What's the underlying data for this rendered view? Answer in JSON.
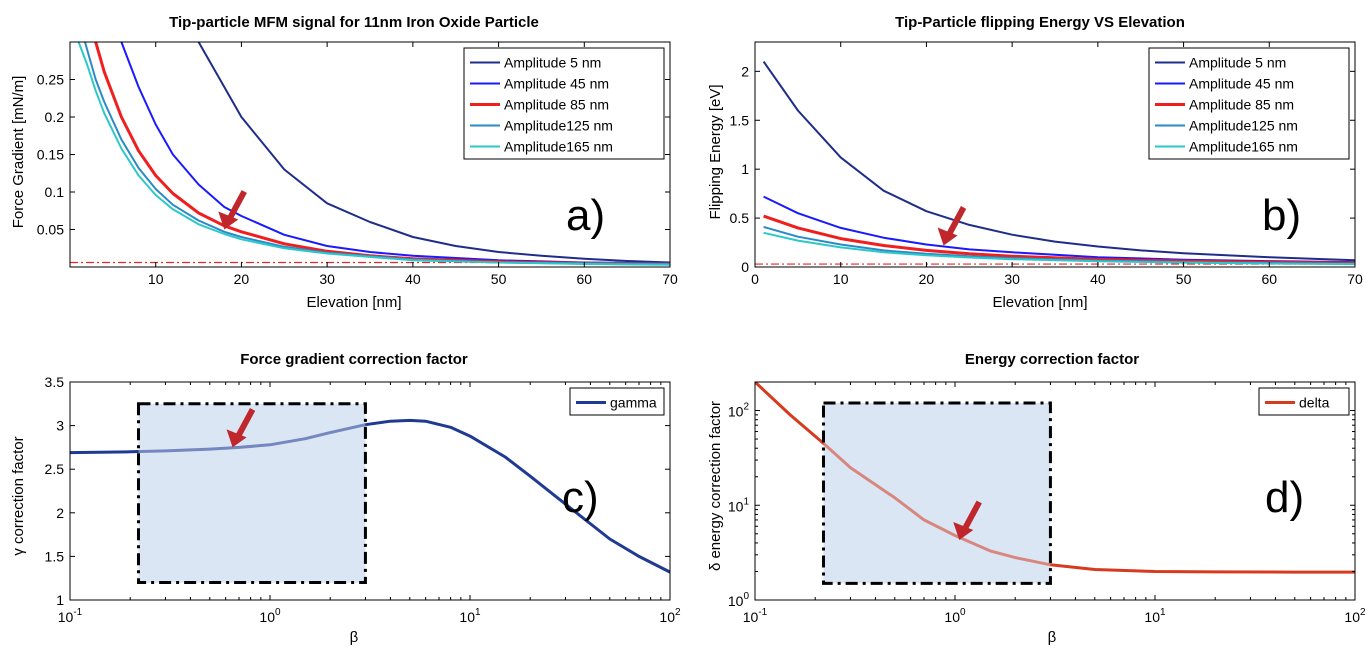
{
  "chart_data": [
    {
      "id": "a",
      "type": "line",
      "title": "Tip-particle MFM signal for 11nm Iron Oxide Particle",
      "xlabel": "Elevation [nm]",
      "ylabel": "Force Gradient [mN/m]",
      "xlim": [
        0,
        70
      ],
      "ylim": [
        0,
        0.3
      ],
      "x_scale": "linear",
      "y_scale": "linear",
      "xticks": [
        10,
        20,
        30,
        40,
        50,
        60,
        70
      ],
      "yticks": [
        0.05,
        0.1,
        0.15,
        0.2,
        0.25
      ],
      "panel_label": "a)",
      "legend_position": "top-right",
      "threshold": {
        "y": 0.006,
        "color": "#e8262b",
        "style": "dash-dot"
      },
      "annotation_arrow": {
        "x": 18,
        "y": 0.05,
        "color": "#c0272d"
      },
      "series": [
        {
          "name": "Amplitude  5 nm",
          "color": "#1f2d8a",
          "width": 2,
          "x": [
            10,
            15,
            18,
            20,
            25,
            30,
            35,
            40,
            45,
            50,
            55,
            60,
            65,
            70
          ],
          "y": [
            0.34,
            0.3,
            0.24,
            0.2,
            0.13,
            0.085,
            0.06,
            0.04,
            0.028,
            0.02,
            0.015,
            0.011,
            0.008,
            0.006
          ]
        },
        {
          "name": "Amplitude 45 nm",
          "color": "#1a1aff",
          "width": 2,
          "x": [
            3,
            5,
            6,
            8,
            10,
            12,
            15,
            18,
            20,
            25,
            30,
            35,
            40,
            50,
            60,
            70
          ],
          "y": [
            0.35,
            0.31,
            0.3,
            0.24,
            0.19,
            0.15,
            0.11,
            0.08,
            0.068,
            0.043,
            0.028,
            0.02,
            0.015,
            0.009,
            0.006,
            0.005
          ]
        },
        {
          "name": "Amplitude 85 nm",
          "color": "#f01e1e",
          "width": 3,
          "x": [
            2,
            3,
            4,
            6,
            8,
            10,
            12,
            15,
            18,
            20,
            25,
            30,
            35,
            40,
            50,
            60,
            70
          ],
          "y": [
            0.34,
            0.3,
            0.26,
            0.2,
            0.155,
            0.122,
            0.098,
            0.072,
            0.055,
            0.047,
            0.031,
            0.021,
            0.015,
            0.011,
            0.007,
            0.005,
            0.004
          ]
        },
        {
          "name": "Amplitude125 nm",
          "color": "#2a8ac8",
          "width": 2,
          "x": [
            1.5,
            2,
            3,
            4,
            6,
            8,
            10,
            12,
            15,
            18,
            20,
            25,
            30,
            40,
            50,
            60,
            70
          ],
          "y": [
            0.31,
            0.29,
            0.25,
            0.22,
            0.17,
            0.132,
            0.104,
            0.083,
            0.062,
            0.047,
            0.04,
            0.027,
            0.019,
            0.01,
            0.006,
            0.005,
            0.004
          ]
        },
        {
          "name": "Amplitude165 nm",
          "color": "#2ec7c9",
          "width": 2,
          "x": [
            1,
            2,
            3,
            4,
            6,
            8,
            10,
            12,
            15,
            18,
            20,
            25,
            30,
            40,
            50,
            60,
            70
          ],
          "y": [
            0.3,
            0.27,
            0.235,
            0.205,
            0.158,
            0.122,
            0.096,
            0.077,
            0.057,
            0.044,
            0.037,
            0.025,
            0.018,
            0.009,
            0.006,
            0.004,
            0.003
          ]
        }
      ]
    },
    {
      "id": "b",
      "type": "line",
      "title": "Tip-Particle flipping Energy VS Elevation",
      "xlabel": "Elevation [nm]",
      "ylabel": "Flipping Energy [eV]",
      "xlim": [
        0,
        70
      ],
      "ylim": [
        0,
        2.3
      ],
      "x_scale": "linear",
      "y_scale": "linear",
      "xticks": [
        0,
        10,
        20,
        30,
        40,
        50,
        60,
        70
      ],
      "yticks": [
        0,
        0.5,
        1,
        1.5,
        2
      ],
      "panel_label": "b)",
      "legend_position": "top-right",
      "threshold": {
        "y": 0.03,
        "color": "#e8262b",
        "style": "dash-dot"
      },
      "annotation_arrow": {
        "x": 22,
        "y": 0.22,
        "color": "#c0272d"
      },
      "series": [
        {
          "name": "Amplitude  5 nm",
          "color": "#1f2d8a",
          "width": 2,
          "x": [
            1,
            5,
            10,
            15,
            20,
            25,
            30,
            35,
            40,
            45,
            50,
            55,
            60,
            65,
            70
          ],
          "y": [
            2.1,
            1.6,
            1.12,
            0.78,
            0.57,
            0.43,
            0.33,
            0.26,
            0.21,
            0.17,
            0.14,
            0.12,
            0.1,
            0.085,
            0.07
          ]
        },
        {
          "name": "Amplitude 45 nm",
          "color": "#1a1aff",
          "width": 2,
          "x": [
            1,
            5,
            10,
            15,
            20,
            25,
            30,
            40,
            50,
            60,
            70
          ],
          "y": [
            0.72,
            0.55,
            0.4,
            0.3,
            0.23,
            0.18,
            0.15,
            0.1,
            0.075,
            0.06,
            0.05
          ]
        },
        {
          "name": "Amplitude 85 nm",
          "color": "#f01e1e",
          "width": 3,
          "x": [
            1,
            5,
            10,
            15,
            20,
            25,
            30,
            40,
            50,
            60,
            70
          ],
          "y": [
            0.52,
            0.4,
            0.29,
            0.22,
            0.17,
            0.135,
            0.11,
            0.078,
            0.06,
            0.048,
            0.04
          ]
        },
        {
          "name": "Amplitude125 nm",
          "color": "#2a8ac8",
          "width": 2,
          "x": [
            1,
            5,
            10,
            15,
            20,
            25,
            30,
            40,
            50,
            60,
            70
          ],
          "y": [
            0.41,
            0.31,
            0.23,
            0.17,
            0.135,
            0.11,
            0.09,
            0.065,
            0.05,
            0.04,
            0.033
          ]
        },
        {
          "name": "Amplitude165 nm",
          "color": "#2ec7c9",
          "width": 2,
          "x": [
            1,
            5,
            10,
            15,
            20,
            25,
            30,
            40,
            50,
            60,
            70
          ],
          "y": [
            0.35,
            0.27,
            0.2,
            0.15,
            0.12,
            0.097,
            0.08,
            0.058,
            0.045,
            0.036,
            0.03
          ]
        }
      ]
    },
    {
      "id": "c",
      "type": "line",
      "title": "Force gradient correction factor",
      "xlabel": "β",
      "ylabel": "γ correction factor",
      "xlim": [
        0.1,
        100
      ],
      "ylim": [
        1,
        3.5
      ],
      "x_scale": "log",
      "y_scale": "linear",
      "xticks": [
        0.1,
        1,
        10,
        100
      ],
      "xtick_labels": [
        {
          "base": "10",
          "exp": "-1"
        },
        {
          "base": "10",
          "exp": "0"
        },
        {
          "base": "10",
          "exp": "1"
        },
        {
          "base": "10",
          "exp": "2"
        }
      ],
      "yticks": [
        1,
        1.5,
        2,
        2.5,
        3,
        3.5
      ],
      "panel_label": "c)",
      "legend_position": "top-right",
      "highlight_box": {
        "x": [
          0.22,
          3.0
        ],
        "y": [
          1.2,
          3.25
        ],
        "fill": "#dbe6f5"
      },
      "annotation_arrow": {
        "x": 0.65,
        "y": 2.75,
        "color": "#c0272d"
      },
      "series": [
        {
          "name": "gamma",
          "color": "#1f3a93",
          "width": 3,
          "x": [
            0.1,
            0.2,
            0.3,
            0.5,
            0.7,
            1,
            1.5,
            2,
            3,
            4,
            5,
            6,
            8,
            10,
            15,
            20,
            30,
            50,
            70,
            100
          ],
          "y": [
            2.69,
            2.7,
            2.71,
            2.73,
            2.75,
            2.78,
            2.85,
            2.92,
            3.01,
            3.05,
            3.06,
            3.05,
            2.98,
            2.88,
            2.64,
            2.42,
            2.1,
            1.7,
            1.5,
            1.32
          ]
        }
      ]
    },
    {
      "id": "d",
      "type": "line",
      "title": "Energy correction factor",
      "xlabel": "β",
      "ylabel": "δ energy correction factor",
      "xlim": [
        0.1,
        100
      ],
      "ylim": [
        1,
        200
      ],
      "x_scale": "log",
      "y_scale": "log",
      "xticks": [
        0.1,
        1,
        10,
        100
      ],
      "xtick_labels": [
        {
          "base": "10",
          "exp": "-1"
        },
        {
          "base": "10",
          "exp": "0"
        },
        {
          "base": "10",
          "exp": "1"
        },
        {
          "base": "10",
          "exp": "2"
        }
      ],
      "yticks": [
        1,
        10,
        100
      ],
      "ytick_labels": [
        {
          "base": "10",
          "exp": "0"
        },
        {
          "base": "10",
          "exp": "1"
        },
        {
          "base": "10",
          "exp": "2"
        }
      ],
      "panel_label": "d)",
      "legend_position": "top-right",
      "highlight_box": {
        "x": [
          0.22,
          3.0
        ],
        "y": [
          1.5,
          120
        ],
        "fill": "#dbe6f5"
      },
      "annotation_arrow": {
        "x": 1.05,
        "y": 4.3,
        "color": "#c0272d"
      },
      "series": [
        {
          "name": "delta",
          "color": "#d63a1f",
          "width": 3,
          "x": [
            0.1,
            0.15,
            0.22,
            0.3,
            0.5,
            0.7,
            1,
            1.5,
            2,
            3,
            5,
            10,
            20,
            50,
            100
          ],
          "y": [
            200,
            90,
            45,
            25,
            12,
            7,
            4.8,
            3.3,
            2.8,
            2.35,
            2.1,
            2.0,
            1.98,
            1.97,
            1.97
          ]
        }
      ]
    }
  ]
}
